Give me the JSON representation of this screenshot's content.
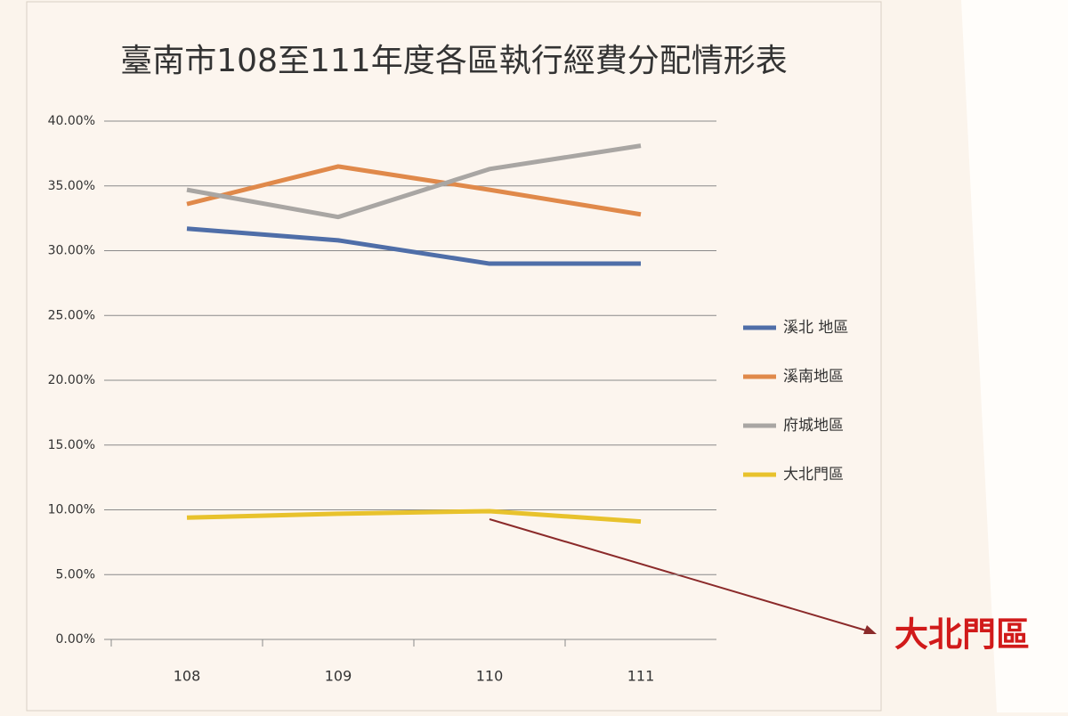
{
  "chart_data": {
    "type": "line",
    "title": "臺南市108至111年度各區執行經費分配情形表",
    "categories": [
      "108",
      "109",
      "110",
      "111"
    ],
    "series": [
      {
        "name": "溪北 地區",
        "color": "#4f6ea8",
        "values": [
          31.7,
          30.8,
          29.0,
          29.0
        ]
      },
      {
        "name": "溪南地區",
        "color": "#e0894a",
        "values": [
          33.6,
          36.5,
          34.7,
          32.8
        ]
      },
      {
        "name": "府城地區",
        "color": "#a9a6a3",
        "values": [
          34.7,
          32.6,
          36.3,
          38.1
        ]
      },
      {
        "name": "大北門區",
        "color": "#e8c22c",
        "values": [
          9.4,
          9.7,
          9.9,
          9.1
        ]
      }
    ],
    "ylim": [
      0,
      40
    ],
    "yticks": [
      {
        "value": 0,
        "label": "0.00%"
      },
      {
        "value": 5,
        "label": "5.00%"
      },
      {
        "value": 10,
        "label": "10.00%"
      },
      {
        "value": 15,
        "label": "15.00%"
      },
      {
        "value": 20,
        "label": "20.00%"
      },
      {
        "value": 25,
        "label": "25.00%"
      },
      {
        "value": 30,
        "label": "30.00%"
      },
      {
        "value": 35,
        "label": "35.00%"
      },
      {
        "value": 40,
        "label": "40.00%"
      }
    ],
    "grid": true,
    "legend": "right",
    "annotation": "大北門區"
  }
}
